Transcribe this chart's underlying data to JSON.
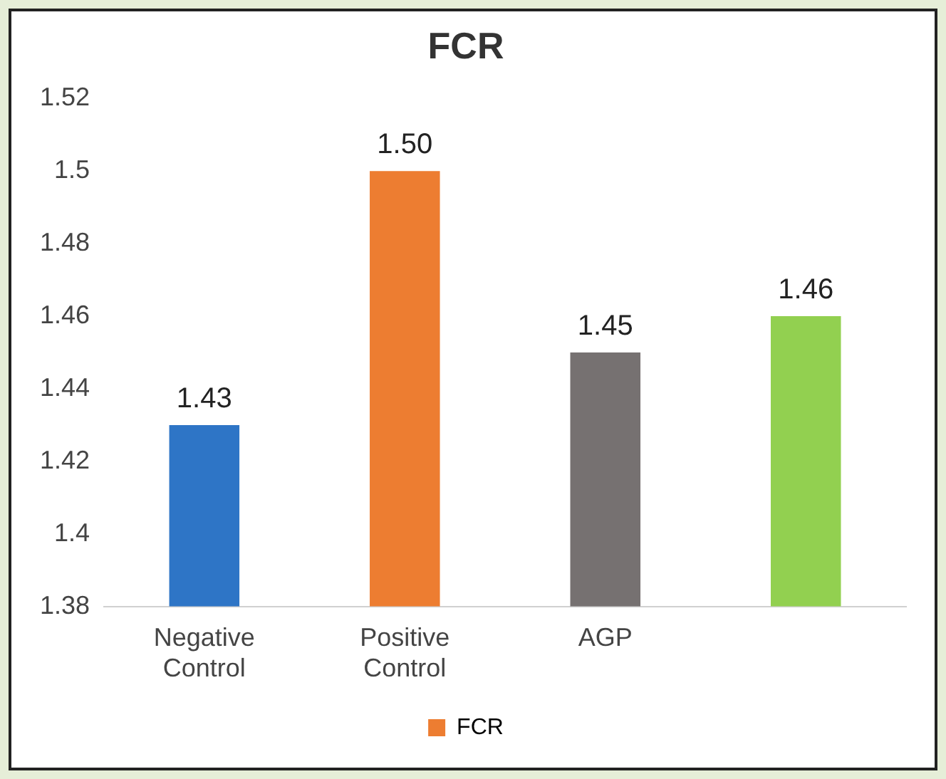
{
  "chart_data": {
    "type": "bar",
    "title": "FCR",
    "categories": [
      "Negative Control",
      "Positive Control",
      "AGP",
      null
    ],
    "series": [
      {
        "name": "FCR",
        "colors": [
          "#2e75c6",
          "#ed7d31",
          "#767171",
          "#92d050"
        ],
        "values": [
          1.43,
          1.5,
          1.45,
          1.46
        ],
        "value_labels": [
          "1.43",
          "1.50",
          "1.45",
          "1.46"
        ]
      }
    ],
    "ylim": [
      1.38,
      1.52
    ],
    "yticks": [
      1.38,
      1.4,
      1.42,
      1.44,
      1.46,
      1.48,
      1.5,
      1.52
    ],
    "grid": false,
    "legend": "bottom"
  }
}
